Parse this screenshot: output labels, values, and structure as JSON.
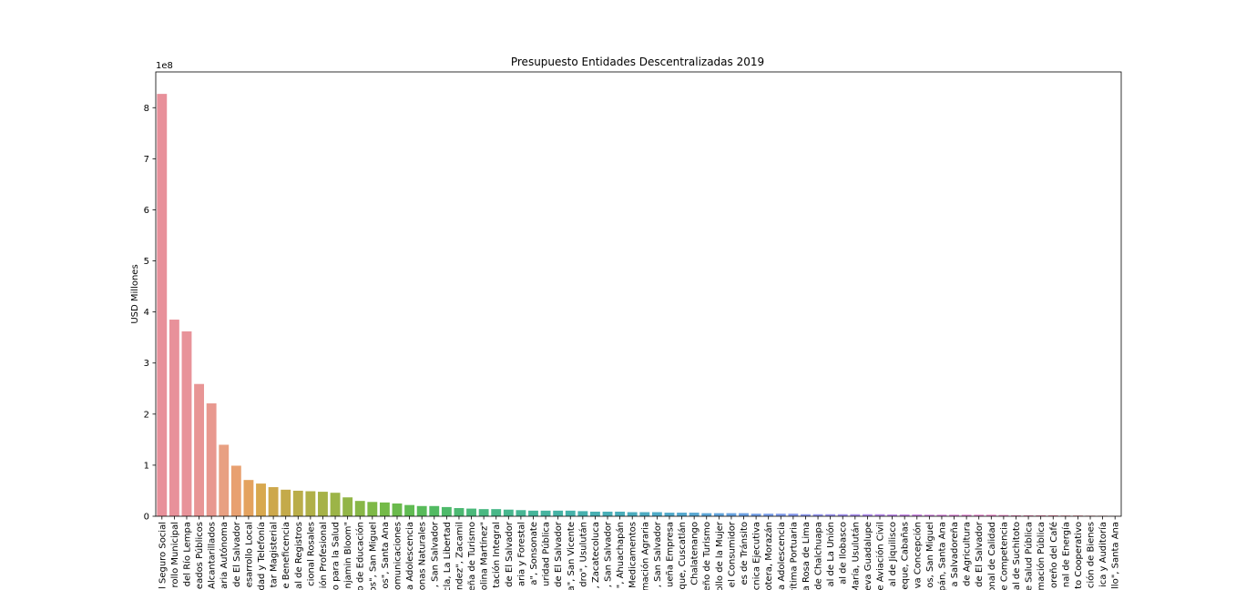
{
  "chart_data": {
    "type": "bar",
    "title": "Presupuesto Entidades Descentralizadas 2019",
    "xlabel": "",
    "ylabel": "USD Millones",
    "y_offset_text": "1e8",
    "ylim": [
      0,
      8.7
    ],
    "yticks": [
      "0",
      "1",
      "2",
      "3",
      "4",
      "5",
      "6",
      "7",
      "8"
    ],
    "grid": false,
    "categories": [
      "Instituto Salvadoreño del Seguro Social",
      "Fondo de Inversión Social para el Desarrollo Municipal",
      "Comisión Ejecutiva Hidroeléctrica del Río Lempa",
      "Instituto Nacional de Pensiones de los Empleados Públicos",
      "Administración Nacional de Acueductos y Alcantarillados",
      "Universidad de El Salvador Autónoma",
      "Centro Nacional de Registros de El Salvador",
      "Fondo de Inversión Social para el Desarrollo Local",
      "Administración Nacional de Telecomunicaciones, Electricidad y Telefonía",
      "Instituto de Bienestar Magisterial",
      "Lotería Nacional de Beneficencia",
      "Centro Nacional de Registros",
      "Hospital Nacional Rosales",
      "Instituto Salvadoreño de Formación Profesional",
      "Fondo Solidario para la Salud",
      "Hospital Nacional de Niños \"Benjamin Bloom\"",
      "Instituto Nacional de los Deportes y Fondo de Educación",
      "Hospital Nacional \"San Juan de Dios\", San Miguel",
      "Hospital Nacional \"San Juan de Dios\", Santa Ana",
      "Superintendencia General de Electricidad y Telecomunicaciones",
      "Instituto Salvadoreño para el Desarrollo Integral de la Niñez y la Adolescencia",
      "Administración de Áreas Protegidas y Zonas Naturales",
      "Hospital Nacional de la Mujer, San Salvador",
      "Hospital Nacional San Rafael, Santa Tecla, La Libertad",
      "Hospital Nacional \"Dr. Juan José Fernández\", Zacamil",
      "Corporación Salvadoreña de Turismo",
      "Hospital Nacional Psiquiátrico \"Dr. José Molina Martínez\"",
      "Instituto Salvadoreño de Rehabilitación Integral",
      "Consejo Superior de Salud Pública de El Salvador",
      "Centro Nacional de Tecnología Agropecuaria y Forestal",
      "Hospital Nacional \"Dr. Jorge Mazzini Villacorta\", Sonsonate",
      "Academia Nacional de Seguridad Pública",
      "Autoridad de Aviación Civil de El Salvador",
      "Hospital Nacional \"Santa Teresa\", San Vicente",
      "Hospital Nacional \"San Pedro\", Usulután",
      "Hospital Nacional \"Santa Teresa\", Zacatecoluca",
      "Hospital Nacional Zacamil, San Salvador",
      "Hospital Nacional \"Francisco Menéndez\", Ahuachapán",
      "Dirección Nacional de Medicamentos",
      "Instituto Salvadoreño de Transformación Agraria",
      "Hospital Nacional Saldaña, San Salvador",
      "Comisión Nacional de la Micro y Pequeña Empresa",
      "Hospital Nacional de Suchitoto, Cojutepeque, Cuscatlán",
      "Hospital Nacional de Chalatenango",
      "Instituto Salvadoreño de Turismo",
      "Instituto Salvadoreño para el Desarrollo de la Mujer",
      "Defensoría del Consumidor",
      "Fondo para la Atención a Víctimas de Accidentes de Tránsito",
      "Comisión Ejecutiva Portuaria Autónoma Técnica Ejecutiva",
      "Hospital Nacional de San Francisco Gotera, Morazán",
      "Instituto Nacional de la Juventud y la Adolescencia",
      "Autoridad Marítima Portuaria",
      "Hospital Nacional de Santa Rosa de Lima",
      "Hospital Nacional de Chalchuapa",
      "Hospital Nacional de La Unión",
      "Hospital Nacional de Ilobasco",
      "Hospital Nacional de Jiquilisco, Santa María, Usulután",
      "Hospital Nacional de Nueva Guadalupe",
      "Escuela Nacional de Aviación Civil",
      "Hospital Nacional de Jiquilisco",
      "Hospital Nacional de Sensuntepeque, Cabañas",
      "Hospital Nacional de Nueva Concepción",
      "Hospital Nacional de Ciudad Barrios, San Miguel",
      "Hospital Nacional de Metapán, Santa Ana",
      "Instituto de Legalización de la Propiedad Salvadoreña",
      "Escuela Nacional de Agricultura",
      "Universidad Nacional de Ingeniería de El Salvador",
      "Organismo Salvadoreño de Reglamentación Técnica Nacional de Calidad",
      "Superintendencia de Competencia",
      "Hospital Nacional de Suchitoto",
      "Consejo Superior de Salud Pública",
      "Instituto Nacional de Formación Pública",
      "Consejo Salvadoreño del Café",
      "Consejo Nacional de Energía",
      "Instituto Salvadoreño de Fomento Cooperativo",
      "Dirección Nacional de Administración de Bienes",
      "Instituto de Acceso a la Información Pública y Auditoría",
      "Hospital Nacional \"Arturo Morales\", Santa Ana"
    ],
    "values": [
      8.27,
      3.85,
      3.62,
      2.59,
      2.21,
      1.4,
      0.99,
      0.71,
      0.64,
      0.57,
      0.52,
      0.5,
      0.49,
      0.48,
      0.46,
      0.37,
      0.3,
      0.28,
      0.27,
      0.25,
      0.22,
      0.2,
      0.2,
      0.18,
      0.16,
      0.15,
      0.14,
      0.14,
      0.13,
      0.12,
      0.11,
      0.11,
      0.11,
      0.11,
      0.1,
      0.09,
      0.09,
      0.09,
      0.08,
      0.08,
      0.08,
      0.07,
      0.07,
      0.07,
      0.06,
      0.06,
      0.06,
      0.06,
      0.05,
      0.05,
      0.05,
      0.05,
      0.04,
      0.04,
      0.04,
      0.04,
      0.04,
      0.04,
      0.04,
      0.035,
      0.035,
      0.035,
      0.03,
      0.03,
      0.03,
      0.03,
      0.03,
      0.03,
      0.025,
      0.02,
      0.02,
      0.02,
      0.02,
      0.015,
      0.015,
      0.012,
      0.01,
      0.008
    ],
    "visible_tick_labels": [
      "l Seguro Social",
      "rollo Municipal",
      "del Río Lempa",
      "eados Públicos",
      "Alcantarillados",
      "aria Autónoma",
      "de El Salvador",
      "esarrollo Local",
      "dad y Telefonía",
      "tar Magisterial",
      "e Beneficencia",
      "al de Registros",
      "cional Rosales",
      "ión Profesional",
      "o para la Salud",
      "njamin Bloom\"",
      "o de Educación",
      "os\", San Miguel",
      "os\", Santa Ana",
      "omunicaciones",
      "a Adolescencia",
      "onas Naturales",
      ", San Salvador",
      "cla, La Libertad",
      "ndez\", Zacamil",
      "eña de Turismo",
      "olina Martínez\"",
      "tación Integral",
      "de El Salvador",
      "aria y Forestal",
      "a\", Sonsonate",
      "uridad Pública",
      "de El Salvador",
      "a\", San Vicente",
      "dro\", Usulután",
      ", Zacatecoluca",
      ", San Salvador",
      "\", Ahuachapán",
      "Medicamentos",
      "mación Agraria",
      ", San Salvador",
      "ueña Empresa",
      "que, Cuscatlán",
      "Chalatenango",
      "eño de Turismo",
      "ollo de la Mujer",
      "el Consumidor",
      "es de Tránsito",
      "cnica Ejecutiva",
      "otera, Morazán",
      "a Adolescencia",
      "rítima Portuaria",
      "a Rosa de Lima",
      "de Chalchuapa",
      "al de La Unión",
      "al de Ilobasco",
      "María, Usulután",
      "eva Guadalupe",
      "e Aviación Civil",
      "al de Jiquilisco",
      "eque, Cabañas",
      "va Concepción",
      "os, San Miguel",
      "pán, Santa Ana",
      "a Salvadoreña",
      "de Agricultura",
      "de El Salvador",
      "onal de Calidad",
      "e Competencia",
      "al de Suchitoto",
      "e Salud Pública",
      "mación Pública",
      "oreño del Café",
      "nal de Energía",
      "to Cooperativo",
      "ción de Bienes",
      "ica y Auditoría",
      "llo\", Santa Ana"
    ],
    "colors": [
      "#e8909a",
      "#e8919a",
      "#e8939a",
      "#e89595",
      "#e8988f",
      "#e8a082",
      "#e8a070",
      "#e4a25e",
      "#d8a84e",
      "#cda84c",
      "#c4aa4a",
      "#baad49",
      "#b0b048",
      "#a6b247",
      "#9cb447",
      "#92b547",
      "#88b747",
      "#7eb947",
      "#74ba48",
      "#6aba4c",
      "#60bb52",
      "#58bb5a",
      "#52ba62",
      "#4eba6a",
      "#4cb972",
      "#4ab97a",
      "#49b881",
      "#48b788",
      "#47b78e",
      "#47b694",
      "#46b59a",
      "#46b4a0",
      "#46b3a5",
      "#46b2aa",
      "#47b1ae",
      "#48b0b3",
      "#49afb7",
      "#4aaebb",
      "#4badbf",
      "#4dacc3",
      "#4fabc7",
      "#52aacb",
      "#55a9cf",
      "#59a8d3",
      "#5da6d7",
      "#62a4db",
      "#67a2df",
      "#6ca0e2",
      "#729ee5",
      "#789ce8",
      "#7e9aea",
      "#8598ec",
      "#8c96ed",
      "#9394ee",
      "#9a92ee",
      "#a190ee",
      "#a88eed",
      "#af8cec",
      "#b68aea",
      "#bd88e8",
      "#c486e5",
      "#ca85e2",
      "#d084de",
      "#d683da",
      "#db83d5",
      "#df83d0",
      "#e284cb",
      "#e585c6",
      "#e787c0",
      "#e889ba",
      "#e98bb4",
      "#e98dae",
      "#e98fa8",
      "#e990a3",
      "#e9919e",
      "#e9929b",
      "#e99398",
      "#e99496"
    ]
  }
}
